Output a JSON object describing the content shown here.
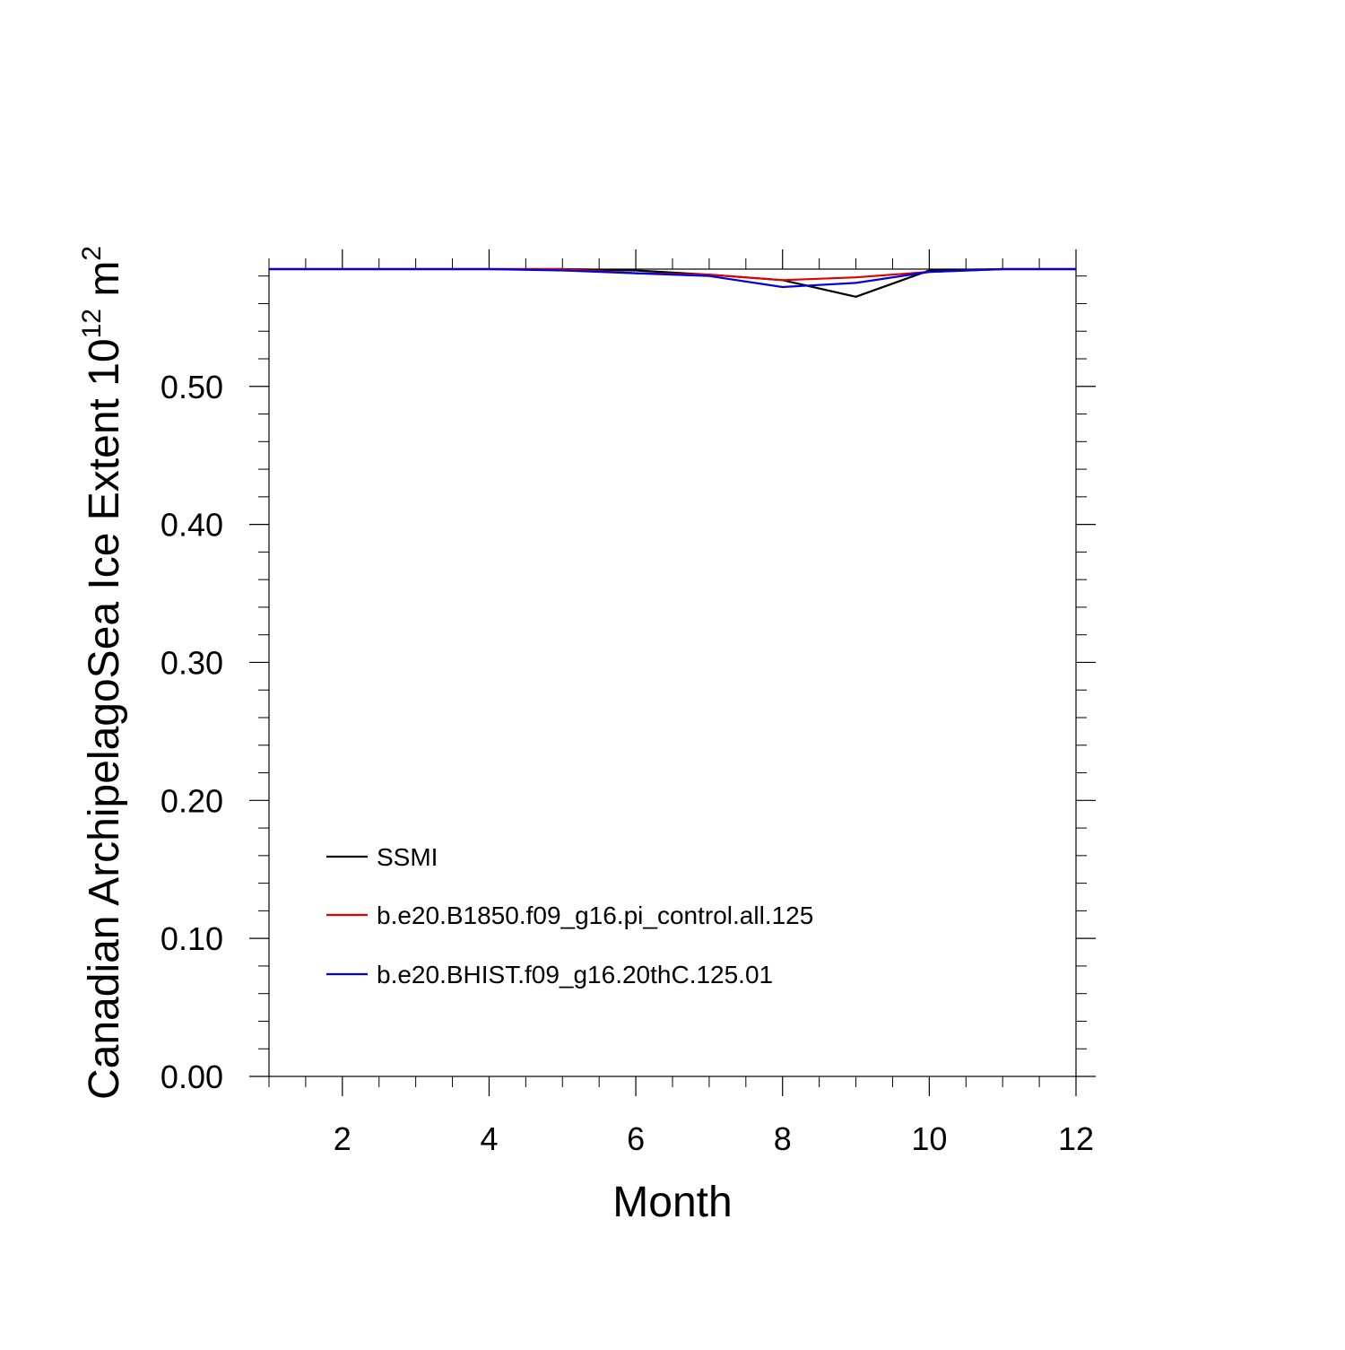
{
  "chart_data": {
    "type": "line",
    "title": "",
    "xlabel": "Month",
    "ylabel": {
      "prefix": "Canadian ArchipelagoSea Ice Extent 10",
      "superscript1": "12",
      "middle": " m",
      "superscript2": "2"
    },
    "xlim": [
      1,
      12
    ],
    "ylim": [
      0,
      0.585
    ],
    "x_ticks": [
      2,
      4,
      6,
      8,
      10,
      12
    ],
    "x_tick_labels": [
      "2",
      "4",
      "6",
      "8",
      "10",
      "12"
    ],
    "y_ticks": [
      0.0,
      0.1,
      0.2,
      0.3,
      0.4,
      0.5
    ],
    "y_tick_labels": [
      "0.00",
      "0.10",
      "0.20",
      "0.30",
      "0.40",
      "0.50"
    ],
    "grid": false,
    "legend_position": "bottom-left",
    "x": [
      1,
      2,
      3,
      4,
      5,
      6,
      7,
      8,
      9,
      10,
      11,
      12
    ],
    "series": [
      {
        "name": "SSMI",
        "color": "#000000",
        "values": [
          0.585,
          0.585,
          0.585,
          0.585,
          0.585,
          0.584,
          0.581,
          0.577,
          0.565,
          0.584,
          0.585,
          0.585
        ]
      },
      {
        "name": "b.e20.B1850.f09_g16.pi_control.all.125",
        "color": "#e00000",
        "values": [
          0.585,
          0.585,
          0.585,
          0.585,
          0.585,
          0.582,
          0.581,
          0.577,
          0.579,
          0.583,
          0.585,
          0.585
        ]
      },
      {
        "name": "b.e20.BHIST.f09_g16.20thC.125.01",
        "color": "#0000e0",
        "values": [
          0.585,
          0.585,
          0.585,
          0.585,
          0.584,
          0.582,
          0.58,
          0.572,
          0.575,
          0.583,
          0.585,
          0.585
        ]
      }
    ]
  }
}
